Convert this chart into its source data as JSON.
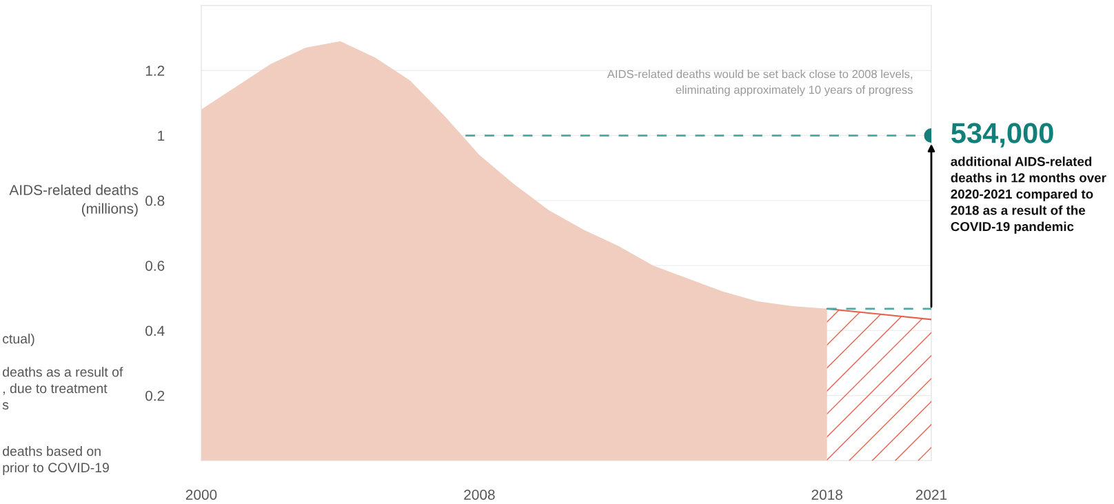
{
  "chart_data": {
    "type": "area",
    "ylabel": "AIDS-related deaths\n(millions)",
    "xlim": [
      2000,
      2021
    ],
    "xticks": [
      2000,
      2008,
      2018,
      2021
    ],
    "ylim": [
      0,
      1.4
    ],
    "yticks": [
      0.2,
      0.4,
      0.6,
      0.8,
      1,
      1.2
    ],
    "grid": "y",
    "series": [
      {
        "color": "#f0cdbf",
        "x": [
          2000,
          2001,
          2002,
          2003,
          2004,
          2005,
          2006,
          2007,
          2008,
          2009,
          2010,
          2011,
          2012,
          2013,
          2014,
          2015,
          2016,
          2017,
          2018
        ],
        "values": [
          1.08,
          1.15,
          1.22,
          1.27,
          1.29,
          1.24,
          1.17,
          1.06,
          0.94,
          0.85,
          0.77,
          0.71,
          0.66,
          0.6,
          0.56,
          0.52,
          0.49,
          0.475,
          0.467
        ]
      },
      {
        "type": "area",
        "color": "#e8604c",
        "x": [
          2018,
          2021
        ],
        "values": [
          0.467,
          0.434
        ]
      },
      {
        "type": "line",
        "color": "#4aa9a4",
        "line_style": "dashed",
        "x": [
          2018,
          2021
        ],
        "values": [
          0.467,
          0.467
        ]
      },
      {
        "type": "line",
        "color": "#4aa9a4",
        "line_style": "dashed",
        "x": [
          2007.6,
          2021
        ],
        "values": [
          1.0,
          1.0
        ]
      },
      {
        "type": "scatter",
        "color": "#127f7a",
        "marker": "circle",
        "x": [
          2021
        ],
        "values": [
          1.0
        ]
      }
    ],
    "annotations": [
      {
        "text": "534,000",
        "x": 2021,
        "y": 1.0
      },
      "additional AIDS-related\ndeaths in 12 months over\n2020-2021 compared to\n2018 as a result of the\nCOVID-19 pandemic",
      "AIDS-related deaths would be set back close to 2008 levels,\neliminating approximately 10 years of progress",
      "ctual)",
      "deaths as a result of\n, due to treatment\ns",
      "deaths based on\nprior to COVID-19"
    ]
  }
}
